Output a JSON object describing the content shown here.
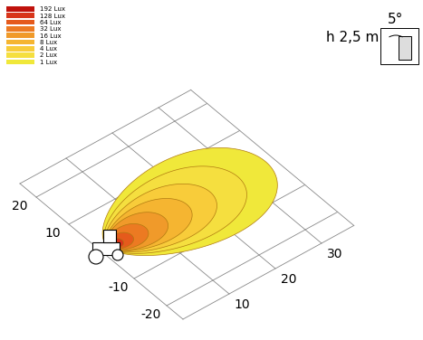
{
  "chart_data": {
    "type": "isolux",
    "xlim": [
      0,
      37
    ],
    "xticks": [
      10,
      20,
      30
    ],
    "ylim": [
      -25,
      25
    ],
    "yticks": [
      -20,
      -10,
      10,
      20
    ],
    "legend": "upper left",
    "grid": true,
    "annotations": [
      "h 2,5 m",
      "5°"
    ],
    "series": [
      {
        "name": "192 Lux",
        "color": "#c0120c",
        "reach": 2,
        "half_width": 1.0
      },
      {
        "name": "128 Lux",
        "color": "#d8351a",
        "reach": 3,
        "half_width": 1.5
      },
      {
        "name": "64 Lux",
        "color": "#e55a1c",
        "reach": 5,
        "half_width": 2.3
      },
      {
        "name": "32 Lux",
        "color": "#ec7a22",
        "reach": 8,
        "half_width": 3.5
      },
      {
        "name": "16 Lux",
        "color": "#f09a2a",
        "reach": 12,
        "half_width": 5.0
      },
      {
        "name": "8 Lux",
        "color": "#f5b531",
        "reach": 17,
        "half_width": 6.5
      },
      {
        "name": "4 Lux",
        "color": "#f8cc3a",
        "reach": 22,
        "half_width": 8.5
      },
      {
        "name": "2 Lux",
        "color": "#f5df3f",
        "reach": 28,
        "half_width": 11.0
      },
      {
        "name": "1 Lux",
        "color": "#f0e83a",
        "reach": 34,
        "half_width": 14.0
      }
    ]
  }
}
